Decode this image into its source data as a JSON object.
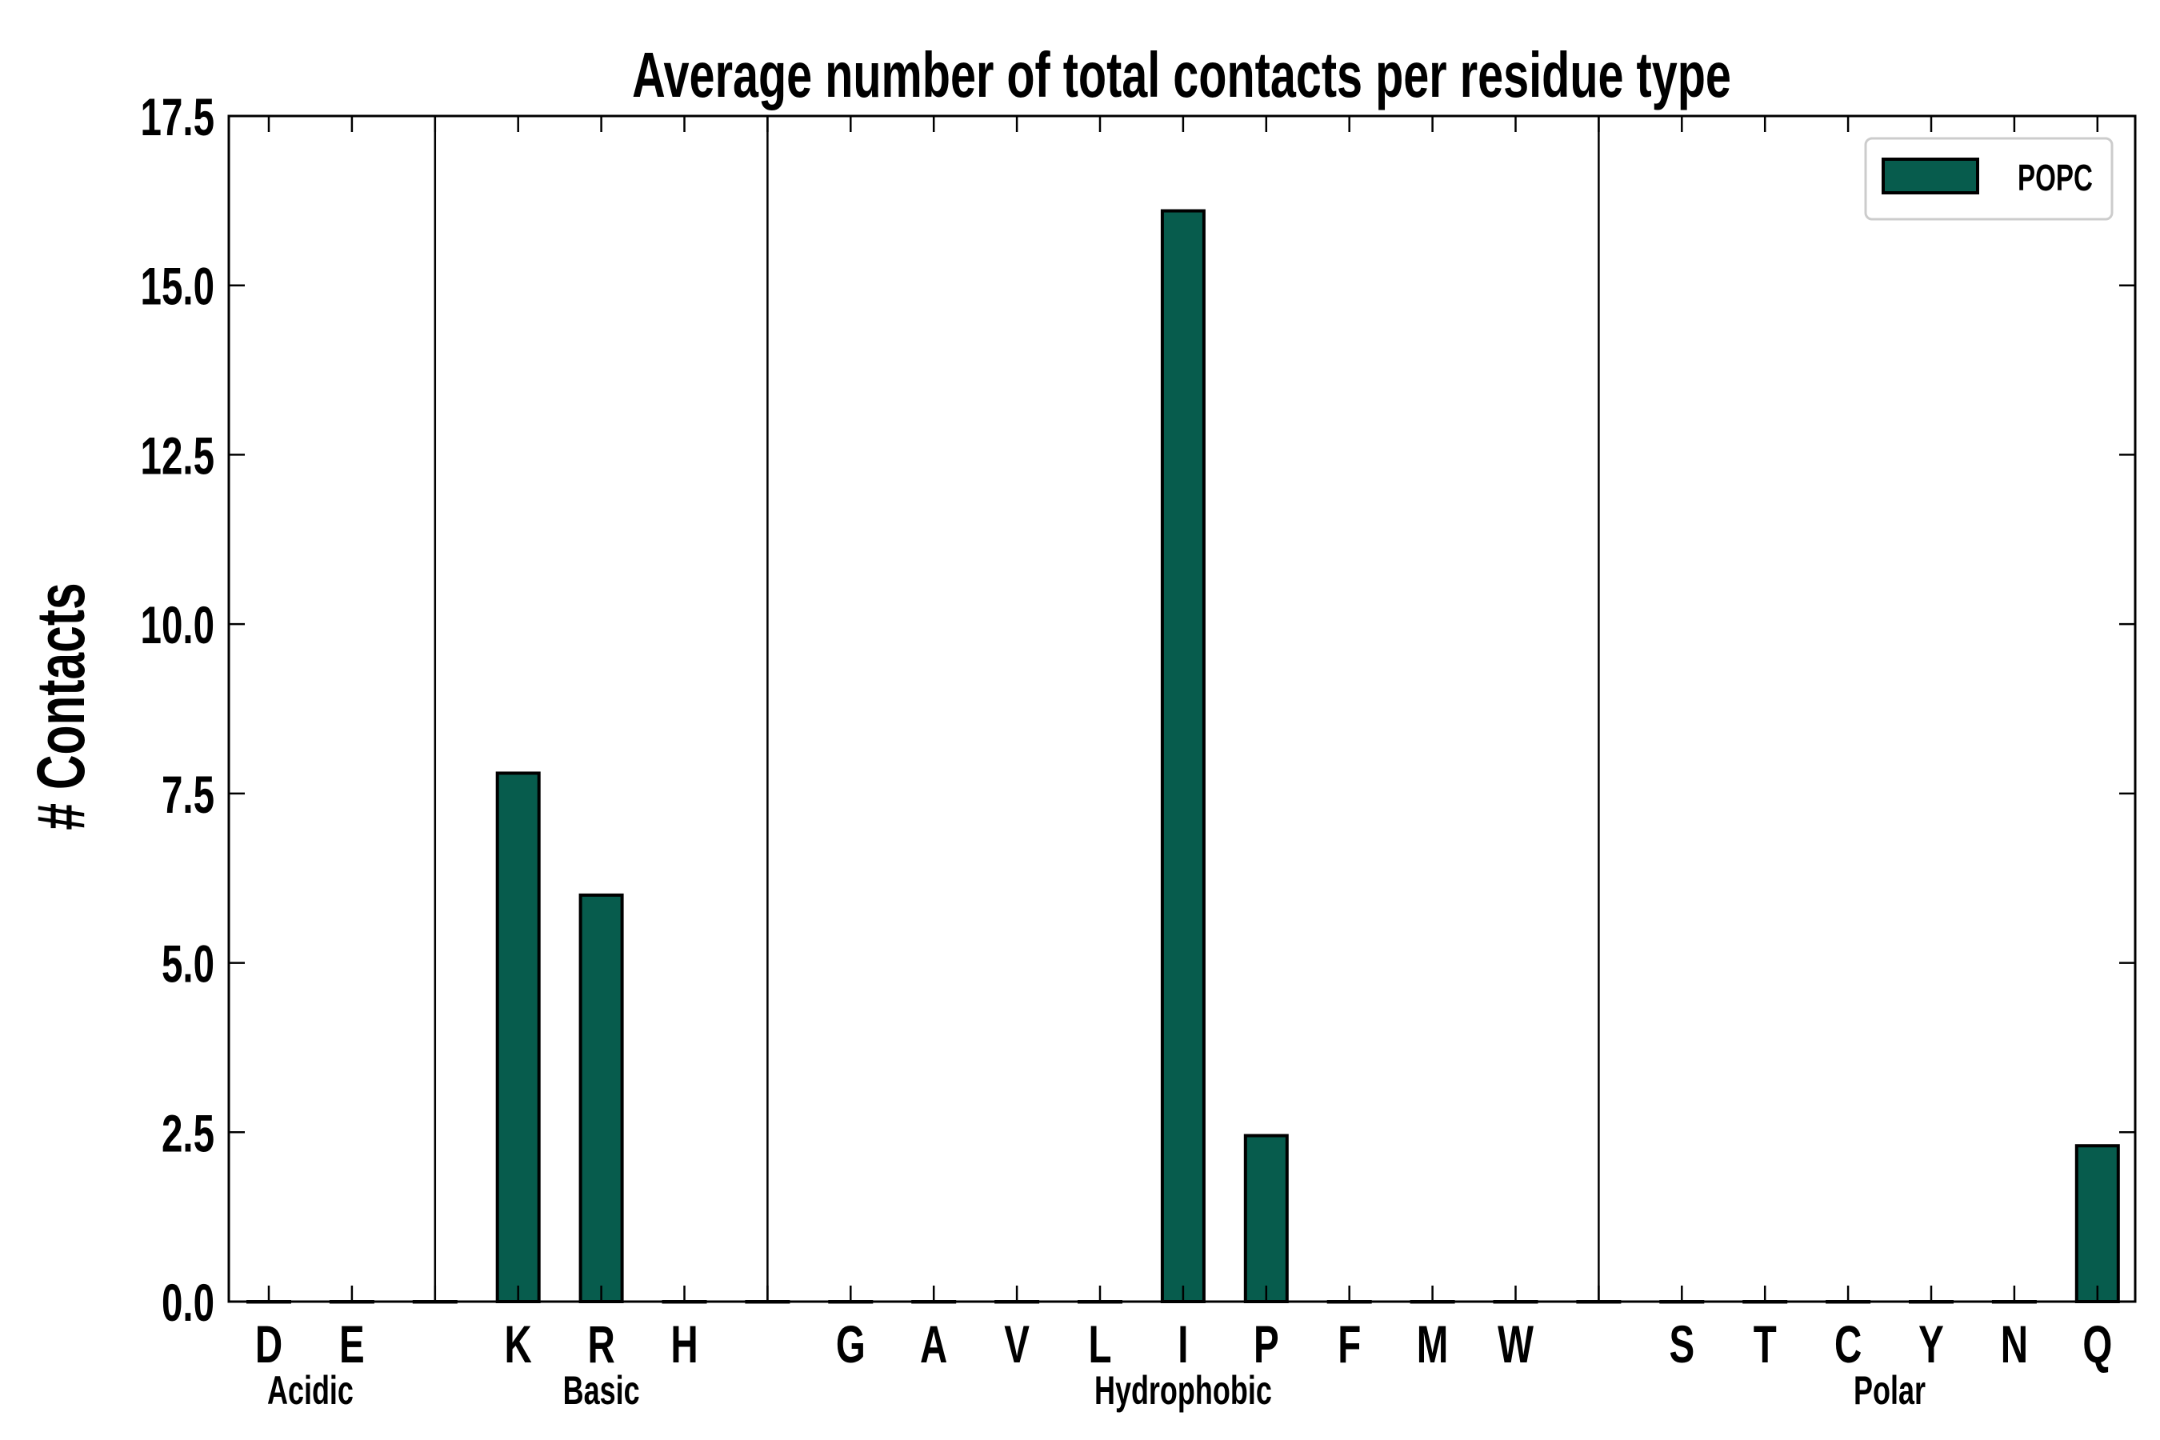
{
  "chart_data": {
    "type": "bar",
    "title": "Average number of total contacts per residue type",
    "xlabel": "",
    "ylabel": "# Contacts",
    "ylim": [
      0,
      17.5
    ],
    "yticks": [
      "0.0",
      "2.5",
      "5.0",
      "7.5",
      "10.0",
      "12.5",
      "15.0",
      "17.5"
    ],
    "grid": false,
    "legend": {
      "position": "top-right",
      "entries": [
        "POPC"
      ]
    },
    "series": [
      {
        "name": "POPC",
        "color": "#075c4d"
      }
    ],
    "groups": [
      {
        "label": "Acidic",
        "residues": [
          "D",
          "E"
        ]
      },
      {
        "label": "Basic",
        "residues": [
          "K",
          "R",
          "H"
        ]
      },
      {
        "label": "Hydrophobic",
        "residues": [
          "G",
          "A",
          "V",
          "L",
          "I",
          "P",
          "F",
          "M",
          "W"
        ]
      },
      {
        "label": "Polar",
        "residues": [
          "S",
          "T",
          "C",
          "Y",
          "N",
          "Q"
        ]
      }
    ],
    "categories": [
      "D",
      "E",
      "K",
      "R",
      "H",
      "G",
      "A",
      "V",
      "L",
      "I",
      "P",
      "F",
      "M",
      "W",
      "S",
      "T",
      "C",
      "Y",
      "N",
      "Q"
    ],
    "values": [
      0,
      0,
      7.8,
      6.0,
      0,
      0,
      0,
      0,
      0,
      16.1,
      2.45,
      0,
      0,
      0,
      0,
      0,
      0,
      0,
      0,
      2.3
    ]
  }
}
